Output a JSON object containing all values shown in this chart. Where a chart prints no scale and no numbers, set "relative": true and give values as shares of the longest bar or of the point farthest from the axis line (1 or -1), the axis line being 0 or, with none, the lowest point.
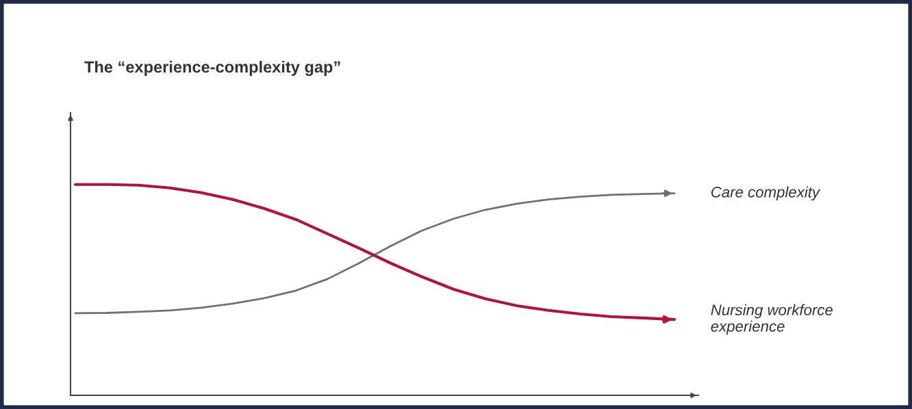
{
  "chart_data": {
    "type": "line",
    "title": "The “experience-complexity gap”",
    "relative": true,
    "categories": [
      null,
      null,
      null,
      null,
      null,
      null,
      null,
      null,
      null,
      null,
      null,
      null,
      null,
      null,
      null,
      null,
      null,
      null,
      null,
      null
    ],
    "series": [
      {
        "name": "Care complexity",
        "color": "#707070",
        "values": [
          0.39,
          0.391,
          0.396,
          0.403,
          0.416,
          0.435,
          0.461,
          0.497,
          0.552,
          0.627,
          0.708,
          0.782,
          0.838,
          0.88,
          0.909,
          0.929,
          0.942,
          0.951,
          0.955,
          0.958
        ]
      },
      {
        "name": "Nursing workforce\nexperience",
        "color": "#b5123a",
        "values": [
          1.0,
          1.0,
          0.997,
          0.984,
          0.961,
          0.929,
          0.886,
          0.834,
          0.766,
          0.698,
          0.627,
          0.562,
          0.503,
          0.458,
          0.425,
          0.403,
          0.386,
          0.373,
          0.367,
          0.36
        ]
      }
    ],
    "grid": false,
    "legend": false,
    "marker": "none",
    "line_style": "solid"
  }
}
